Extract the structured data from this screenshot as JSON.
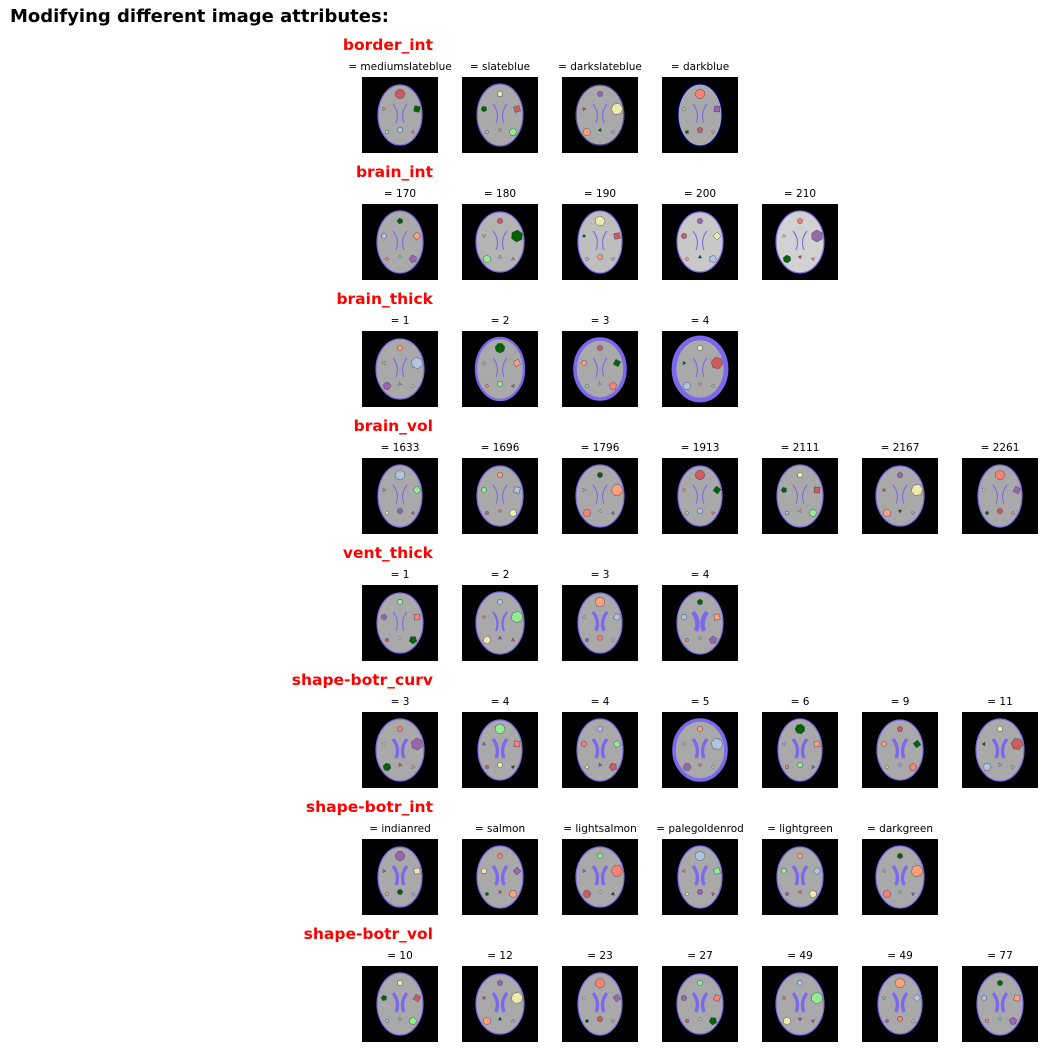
{
  "title": "Modifying different image attributes:",
  "rows": [
    {
      "label": "border_int",
      "captions": [
        "= mediumslateblue",
        "= slateblue",
        "= darkslateblue",
        "= darkblue"
      ],
      "borders": [
        "#7b68ee",
        "#6a5acd",
        "#483d8b",
        "#00008b"
      ],
      "widths": [
        1,
        1,
        1,
        1
      ],
      "brains": [
        "#a9a9a9",
        "#a9a9a9",
        "#a9a9a9",
        "#a9a9a9"
      ],
      "vents": [
        1,
        1,
        1,
        1
      ]
    },
    {
      "label": "brain_int",
      "captions": [
        "= 170",
        "= 180",
        "= 190",
        "= 200",
        "= 210"
      ],
      "borders": [
        "#7b68ee",
        "#7b68ee",
        "#7b68ee",
        "#7b68ee",
        "#7b68ee"
      ],
      "widths": [
        1,
        1,
        1,
        1,
        1
      ],
      "brains": [
        "#aaaaaa",
        "#b4b4b4",
        "#bebebe",
        "#c8c8c8",
        "#d2d2d2"
      ],
      "vents": [
        1,
        1,
        1,
        1,
        1
      ]
    },
    {
      "label": "brain_thick",
      "captions": [
        "= 1",
        "= 2",
        "= 3",
        "= 4"
      ],
      "borders": [
        "#7b68ee",
        "#7b68ee",
        "#7b68ee",
        "#7b68ee"
      ],
      "widths": [
        1,
        2,
        3,
        4
      ],
      "brains": [
        "#a9a9a9",
        "#a9a9a9",
        "#a9a9a9",
        "#a9a9a9"
      ],
      "vents": [
        1,
        1,
        1,
        1
      ]
    },
    {
      "label": "brain_vol",
      "captions": [
        "= 1633",
        "= 1696",
        "= 1796",
        "= 1913",
        "= 2111",
        "= 2167",
        "= 2261"
      ],
      "borders": [
        "#7b68ee",
        "#7b68ee",
        "#7b68ee",
        "#7b68ee",
        "#7b68ee",
        "#7b68ee",
        "#7b68ee"
      ],
      "widths": [
        1,
        1,
        1,
        1,
        1,
        1,
        1
      ],
      "brains": [
        "#a9a9a9",
        "#a9a9a9",
        "#a9a9a9",
        "#a9a9a9",
        "#a9a9a9",
        "#a9a9a9",
        "#a9a9a9"
      ],
      "vents": [
        1,
        1,
        1,
        1,
        1,
        1,
        1
      ]
    },
    {
      "label": "vent_thick",
      "captions": [
        "= 1",
        "= 2",
        "= 3",
        "= 4"
      ],
      "borders": [
        "#7b68ee",
        "#7b68ee",
        "#7b68ee",
        "#7b68ee"
      ],
      "widths": [
        1,
        1,
        1,
        1
      ],
      "brains": [
        "#a9a9a9",
        "#a9a9a9",
        "#a9a9a9",
        "#a9a9a9"
      ],
      "vents": [
        1,
        2,
        3,
        4
      ]
    },
    {
      "label": "shape-botr_curv",
      "captions": [
        "= 3",
        "= 4",
        "= 4",
        "= 5",
        "= 6",
        "= 9",
        "= 11"
      ],
      "borders": [
        "#7b68ee",
        "#7b68ee",
        "#7b68ee",
        "#7b68ee",
        "#7b68ee",
        "#7b68ee",
        "#7b68ee"
      ],
      "widths": [
        1,
        1,
        1,
        3,
        1,
        1,
        1
      ],
      "brains": [
        "#a9a9a9",
        "#a9a9a9",
        "#a9a9a9",
        "#a9a9a9",
        "#a9a9a9",
        "#a9a9a9",
        "#a9a9a9"
      ],
      "vents": [
        3,
        3,
        3,
        3,
        3,
        3,
        3
      ]
    },
    {
      "label": "shape-botr_int",
      "captions": [
        "= indianred",
        "= salmon",
        "= lightsalmon",
        "= palegoldenrod",
        "= lightgreen",
        "= darkgreen"
      ],
      "borders": [
        "#7b68ee",
        "#7b68ee",
        "#7b68ee",
        "#7b68ee",
        "#7b68ee",
        "#7b68ee"
      ],
      "widths": [
        1,
        1,
        1,
        1,
        1,
        1
      ],
      "brains": [
        "#a9a9a9",
        "#a9a9a9",
        "#a9a9a9",
        "#a9a9a9",
        "#a9a9a9",
        "#a9a9a9"
      ],
      "vents": [
        3,
        3,
        3,
        3,
        3,
        3
      ]
    },
    {
      "label": "shape-botr_vol",
      "captions": [
        "= 10",
        "= 12",
        "= 23",
        "= 27",
        "= 49",
        "= 49",
        "= 77"
      ],
      "borders": [
        "#7b68ee",
        "#7b68ee",
        "#7b68ee",
        "#7b68ee",
        "#7b68ee",
        "#7b68ee",
        "#7b68ee"
      ],
      "widths": [
        1,
        1,
        1,
        1,
        1,
        1,
        1
      ],
      "brains": [
        "#a9a9a9",
        "#a9a9a9",
        "#a9a9a9",
        "#a9a9a9",
        "#a9a9a9",
        "#a9a9a9",
        "#a9a9a9"
      ],
      "vents": [
        3,
        3,
        3,
        3,
        3,
        3,
        3
      ]
    }
  ],
  "blob_colors": [
    "#cd5c5c",
    "#fa8072",
    "#ffa07a",
    "#eee8aa",
    "#90ee90",
    "#006400",
    "#9966aa",
    "#b0c4de"
  ]
}
